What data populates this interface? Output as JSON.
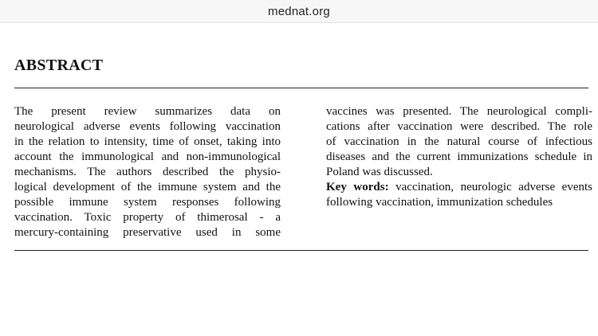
{
  "browser": {
    "url": "mednat.org"
  },
  "abstract": {
    "heading": "ABSTRACT",
    "left_lines": [
      "The present review summarizes data on",
      "neurological adverse events following vaccination",
      "in the relation to intensity, time of onset, taking into",
      "account the immunological and non-immunological",
      "mechanisms. The authors described the physio-",
      "logical development of the immune system and the",
      "possible immune system responses following",
      "vaccination. Toxic property of thimerosal - a",
      "mercury-containing preservative used in some"
    ],
    "right_lines": [
      "vaccines was presented. The neurological compli-",
      "cations after vaccination were described. The role",
      "of vaccination in the natural course of infectious",
      "diseases and the current immunizations schedule in",
      "Poland was discussed."
    ],
    "keywords_label": "Key words:",
    "keywords_line1": " vaccination, neurologic adverse events",
    "keywords_line2": "following vaccination, immunization schedules"
  }
}
